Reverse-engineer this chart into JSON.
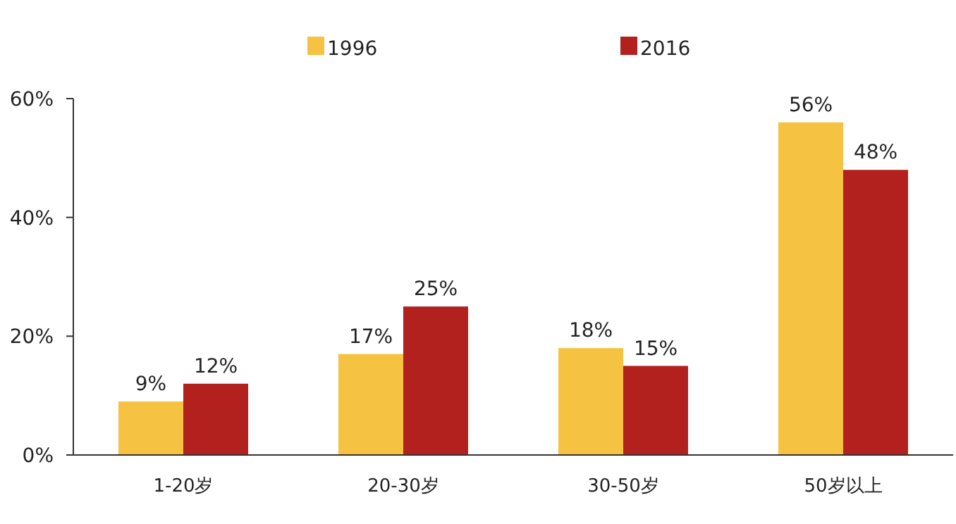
{
  "chart_data": {
    "type": "bar",
    "categories": [
      "1-20岁",
      "20-30岁",
      "30-50岁",
      "50岁以上"
    ],
    "series": [
      {
        "name": "1996",
        "color": "#f5c341",
        "values": [
          9,
          17,
          18,
          56
        ],
        "value_labels": [
          "9%",
          "17%",
          "18%",
          "56%"
        ]
      },
      {
        "name": "2016",
        "color": "#b3211e",
        "values": [
          12,
          25,
          15,
          48
        ],
        "value_labels": [
          "12%",
          "25%",
          "15%",
          "48%"
        ]
      }
    ],
    "ylim": [
      0,
      60
    ],
    "yticks": [
      {
        "value": 0,
        "label": "0%"
      },
      {
        "value": 20,
        "label": "20%"
      },
      {
        "value": 40,
        "label": "40%"
      },
      {
        "value": 60,
        "label": "60%"
      }
    ],
    "legend": "top",
    "grid": false
  }
}
